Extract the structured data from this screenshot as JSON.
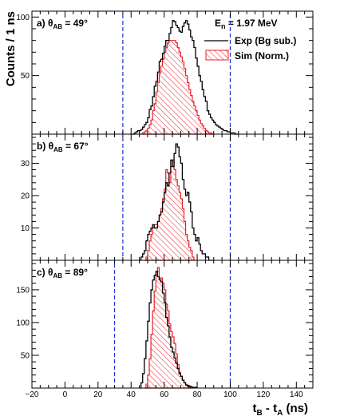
{
  "chart_data": {
    "type": "histogram",
    "x_axis": {
      "label_main": "t",
      "label_sub_b": "B",
      "label_mid": " - t",
      "label_sub_a": "A",
      "label_unit": " (ns)",
      "range": [
        -20,
        150
      ],
      "major_ticks": [
        -20,
        0,
        20,
        40,
        60,
        80,
        100,
        120,
        140
      ],
      "tick_labels": [
        "−20",
        "0",
        "20",
        "40",
        "60",
        "80",
        "100",
        "120",
        "140"
      ]
    },
    "y_axis_title": "Counts / 1 ns",
    "energy_label": {
      "main": "E",
      "sub": "n",
      "rest": " = 1.97 MeV"
    },
    "legend": [
      {
        "label": "Exp (Bg sub.)",
        "style": "line",
        "color": "#000000"
      },
      {
        "label": "Sim (Norm.)",
        "style": "hatched",
        "color": "#e8202a"
      }
    ],
    "panels": [
      {
        "label_prefix": "a)  θ",
        "label_sub": "AB",
        "label_suffix": " = 49°",
        "ylim": [
          0,
          105
        ],
        "y_ticks": [
          50,
          100
        ],
        "y_tick_labels": [
          "50",
          "100"
        ],
        "cuts": [
          35,
          100
        ],
        "exp": {
          "x0": 40,
          "values": [
            0,
            0,
            1,
            2,
            3,
            3,
            4,
            6,
            8,
            10,
            14,
            21,
            24,
            32,
            41,
            45,
            53,
            62,
            64,
            69,
            75,
            80,
            80,
            86,
            91,
            97,
            96,
            93,
            91,
            88,
            87,
            92,
            95,
            97,
            94,
            89,
            83,
            80,
            74,
            65,
            58,
            50,
            45,
            38,
            32,
            28,
            20,
            17,
            14,
            12,
            10,
            8,
            7,
            6,
            5,
            4,
            3,
            3,
            2,
            2,
            1,
            1,
            1,
            0,
            0
          ]
        },
        "sim": {
          "x0": 45,
          "values": [
            0,
            0,
            1,
            2,
            3,
            5,
            8,
            12,
            20,
            26,
            36,
            44,
            52,
            58,
            64,
            70,
            74,
            78,
            80,
            80,
            80,
            80,
            78,
            74,
            70,
            66,
            62,
            56,
            50,
            44,
            38,
            33,
            28,
            24,
            20,
            16,
            12,
            9,
            7,
            5,
            3,
            2,
            1,
            1,
            0
          ]
        }
      },
      {
        "label_prefix": "b)  θ",
        "label_sub": "AB",
        "label_suffix": " = 67°",
        "ylim": [
          0,
          39
        ],
        "y_ticks": [
          10,
          20,
          30
        ],
        "y_tick_labels": [
          "10",
          "20",
          "30"
        ],
        "cuts": [
          35,
          100
        ],
        "exp": {
          "x0": 45,
          "values": [
            0,
            1,
            2,
            3,
            6,
            8,
            9,
            10,
            11,
            10,
            10,
            12,
            14,
            15,
            18,
            21,
            24,
            23,
            27,
            31,
            29,
            33,
            36,
            35,
            32,
            30,
            25,
            22,
            20,
            21,
            18,
            15,
            10,
            8,
            6,
            7,
            5,
            3,
            2,
            2,
            1,
            1,
            0,
            0,
            0
          ]
        },
        "sim": {
          "x0": 48,
          "values": [
            0,
            1,
            3,
            6,
            8,
            10,
            11,
            11,
            12,
            14,
            16,
            19,
            22,
            28,
            27,
            24,
            29,
            31,
            28,
            25,
            23,
            21,
            19,
            16,
            12,
            8,
            6,
            4,
            3,
            1,
            0
          ]
        }
      },
      {
        "label_prefix": "c)  θ",
        "label_sub": "AB",
        "label_suffix": " = 89°",
        "ylim": [
          0,
          195
        ],
        "y_ticks": [
          50,
          100,
          150
        ],
        "y_tick_labels": [
          "50",
          "100",
          "150"
        ],
        "cuts": [
          30,
          100
        ],
        "exp": {
          "x0": 45,
          "values": [
            0,
            8,
            22,
            45,
            72,
            102,
            130,
            150,
            165,
            172,
            178,
            170,
            165,
            162,
            145,
            130,
            108,
            95,
            78,
            62,
            55,
            46,
            38,
            30,
            22,
            18,
            12,
            8,
            5,
            4,
            3,
            2,
            1,
            1,
            1
          ]
        },
        "sim": {
          "x0": 48,
          "values": [
            0,
            6,
            20,
            45,
            82,
            118,
            148,
            172,
            184,
            168,
            168,
            160,
            150,
            128,
            118,
            98,
            86,
            78,
            68,
            52,
            36,
            24,
            18,
            12,
            8,
            4,
            2,
            1,
            0
          ]
        }
      }
    ]
  }
}
